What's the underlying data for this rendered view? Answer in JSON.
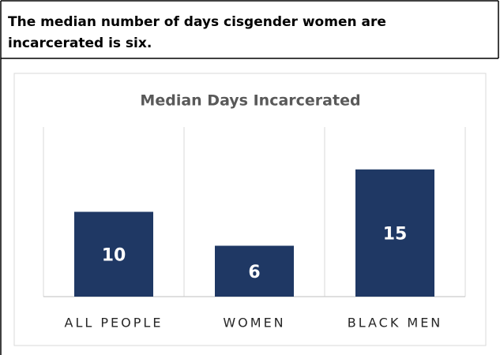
{
  "header": {
    "text": [
      "The median number of days cisgender women are",
      "incarcerated is six."
    ]
  },
  "chart_data": {
    "type": "bar",
    "title": "Median Days Incarcerated",
    "categories": [
      "ALL PEOPLE",
      "WOMEN",
      "BLACK MEN"
    ],
    "values": [
      10,
      6,
      15
    ],
    "color": "#1f3864",
    "ylim": [
      0,
      20
    ]
  }
}
